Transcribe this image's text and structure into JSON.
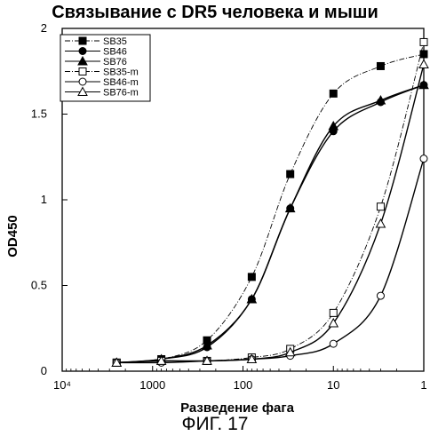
{
  "chart_data": {
    "type": "line",
    "title": "Связывание с DR5 человека и мыши",
    "xlabel": "Разведение фага",
    "ylabel": "OD450",
    "x_scale": "log",
    "x_reversed": true,
    "xlim": [
      10000,
      1
    ],
    "ylim": [
      0,
      2
    ],
    "x_ticks": [
      {
        "value": 10000,
        "label": "10⁴"
      },
      {
        "value": 1000,
        "label": "1000"
      },
      {
        "value": 100,
        "label": "100"
      },
      {
        "value": 10,
        "label": "10"
      },
      {
        "value": 1,
        "label": "1"
      }
    ],
    "y_ticks": [
      {
        "value": 0,
        "label": "0"
      },
      {
        "value": 0.5,
        "label": "0.5"
      },
      {
        "value": 1,
        "label": "1"
      },
      {
        "value": 1.5,
        "label": "1.5"
      },
      {
        "value": 2,
        "label": "2"
      }
    ],
    "legend_position": "top-left",
    "x": [
      2500,
      800,
      250,
      80,
      30,
      10,
      3,
      1
    ],
    "series": [
      {
        "name": "SB35",
        "values": [
          0.05,
          0.07,
          0.18,
          0.55,
          1.15,
          1.62,
          1.78,
          1.85
        ],
        "marker": "filled-square",
        "dash": "dashdot"
      },
      {
        "name": "SB46",
        "values": [
          0.05,
          0.07,
          0.14,
          0.42,
          0.95,
          1.4,
          1.57,
          1.67
        ],
        "marker": "filled-circle",
        "dash": "solid"
      },
      {
        "name": "SB76",
        "values": [
          0.05,
          0.07,
          0.15,
          0.42,
          0.95,
          1.43,
          1.58,
          1.67
        ],
        "marker": "filled-triangle",
        "dash": "solid"
      },
      {
        "name": "SB35-m",
        "values": [
          0.05,
          0.06,
          0.06,
          0.08,
          0.13,
          0.34,
          0.96,
          1.92
        ],
        "marker": "open-square",
        "dash": "dashdot"
      },
      {
        "name": "SB46-m",
        "values": [
          0.05,
          0.05,
          0.06,
          0.07,
          0.09,
          0.16,
          0.44,
          1.24
        ],
        "marker": "open-circle",
        "dash": "solid"
      },
      {
        "name": "SB76-m",
        "values": [
          0.05,
          0.06,
          0.06,
          0.07,
          0.11,
          0.28,
          0.86,
          1.79
        ],
        "marker": "open-triangle",
        "dash": "solid"
      }
    ]
  },
  "figure_label": "ФИГ. 17"
}
